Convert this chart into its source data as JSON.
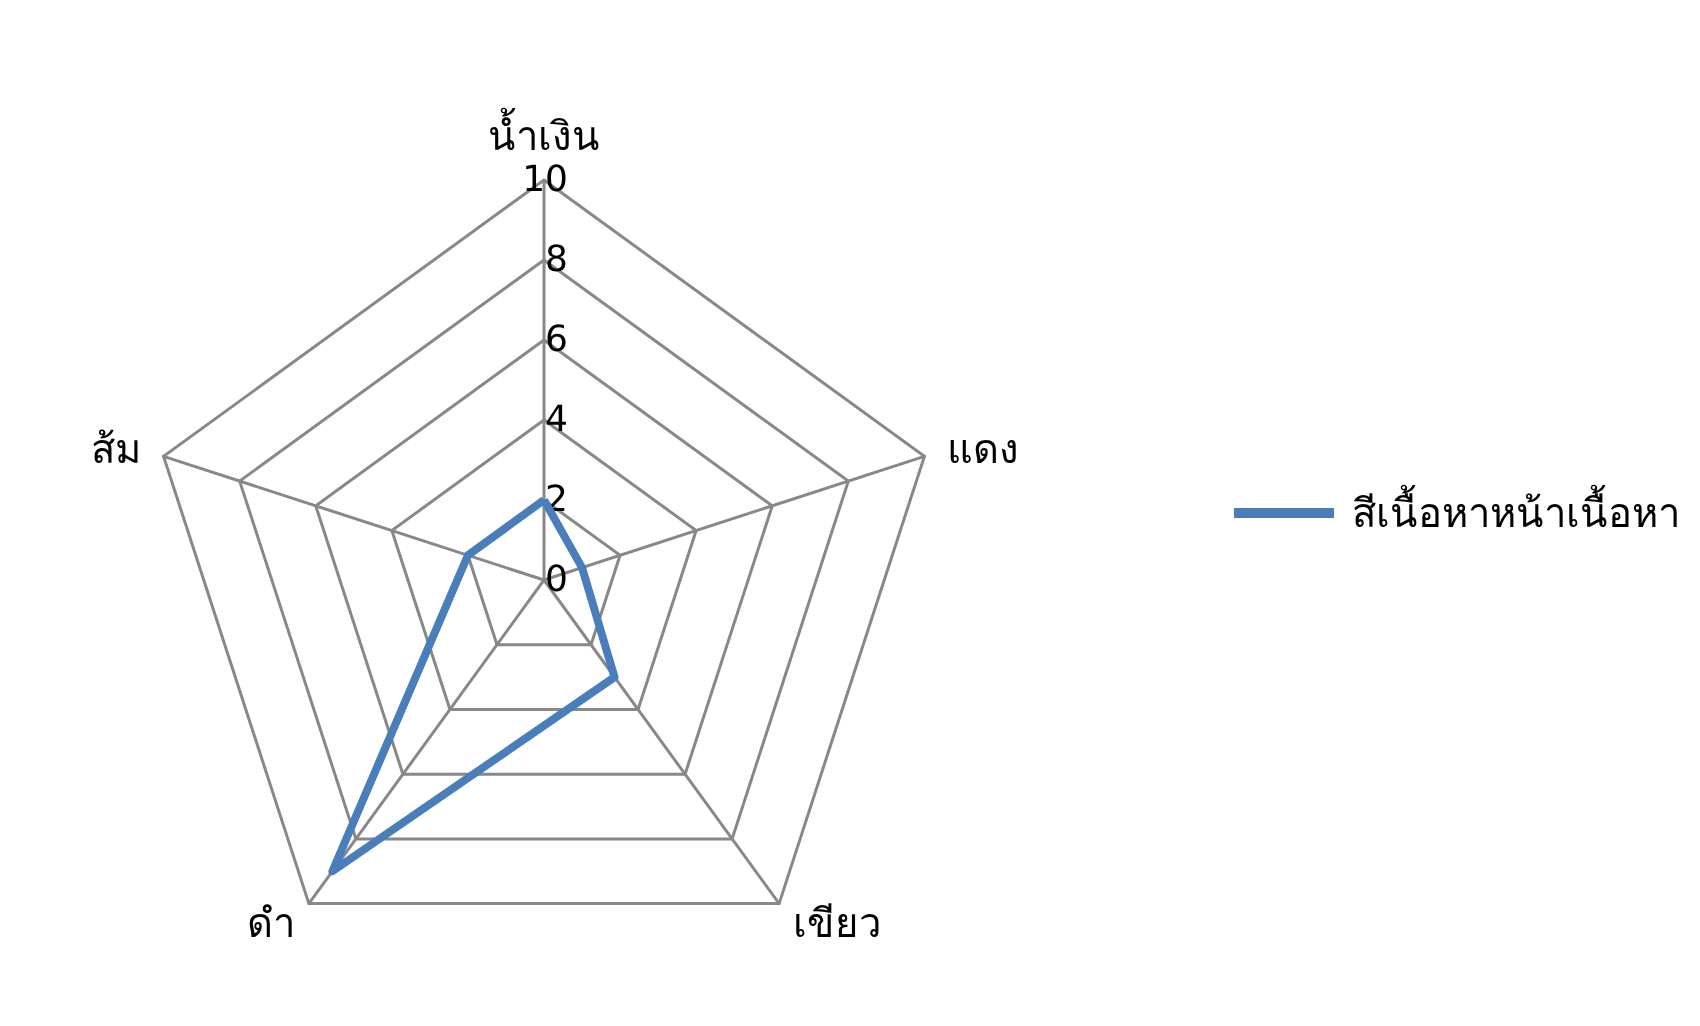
{
  "chart_data": {
    "type": "radar",
    "categories": [
      "น้ำเงิน",
      "แดง",
      "เขียว",
      "ดำ",
      "ส้ม"
    ],
    "series": [
      {
        "name": "สีเนื้อหาหน้าเนื้อหา",
        "color": "#4a7ebb",
        "values": [
          2,
          1,
          3,
          9,
          2
        ]
      }
    ],
    "ylim": [
      0,
      10
    ],
    "yticks": [
      0,
      2,
      4,
      6,
      8,
      10
    ],
    "legend": "right",
    "marker": "none",
    "line_style": "solid"
  }
}
